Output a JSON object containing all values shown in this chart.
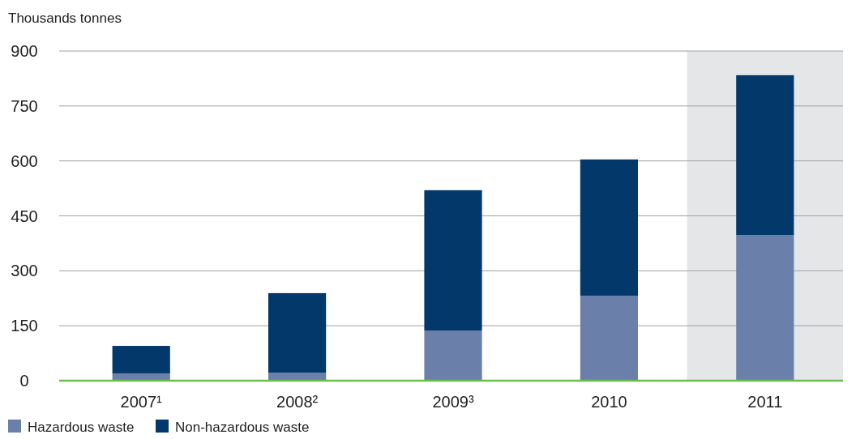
{
  "chart_data": {
    "type": "bar",
    "ylabel": "Thousands tonnes",
    "categories": [
      "2007¹",
      "2008²",
      "2009³",
      "2010",
      "2011"
    ],
    "series": [
      {
        "name": "Hazardous waste",
        "color": "#6a80aa",
        "values": [
          20,
          22,
          137,
          232,
          398
        ]
      },
      {
        "name": "Non-hazardous waste",
        "color": "#02386a",
        "values": [
          75,
          217,
          383,
          372,
          436
        ]
      }
    ],
    "stacked": true,
    "ylim": [
      0,
      900
    ],
    "yticks": [
      0,
      150,
      300,
      450,
      600,
      750,
      900
    ],
    "grid": "y",
    "legend": "bottom left",
    "bands": [
      {
        "axis": "x",
        "from": "2011",
        "to": "2011",
        "color": "#e5e6e8"
      }
    ]
  }
}
